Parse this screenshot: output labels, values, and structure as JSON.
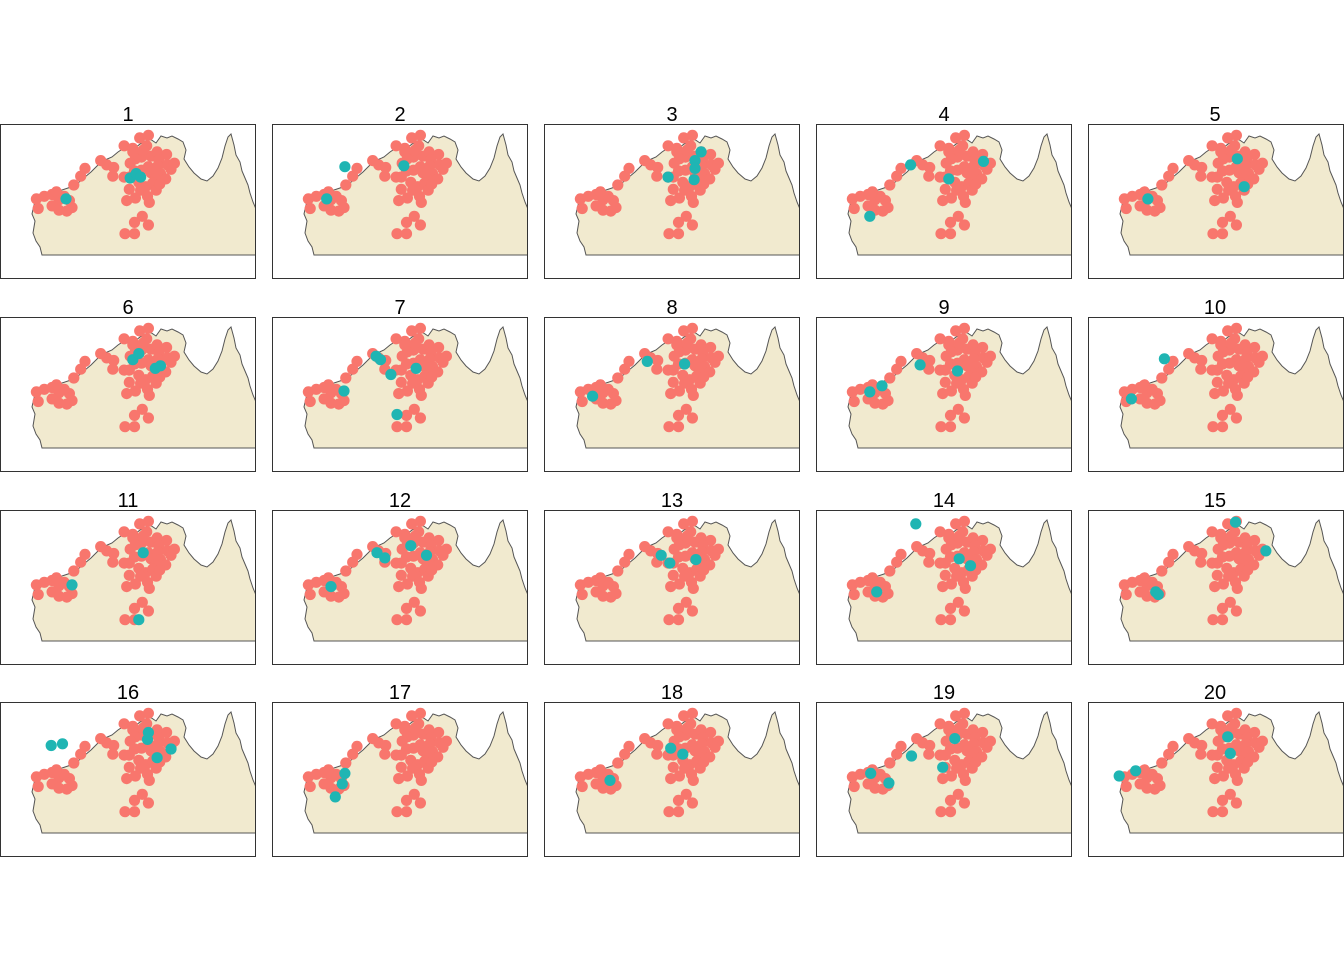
{
  "figure": {
    "type": "small-multiples-map",
    "panels": [
      {
        "title": "1",
        "highlight": [
          [
            -18.6,
            125.6
          ],
          [
            -16.2,
            133.0
          ],
          [
            -15.7,
            133.7
          ],
          [
            -16.1,
            134.2
          ]
        ]
      },
      {
        "title": "2",
        "highlight": [
          [
            -14.9,
            126.4
          ],
          [
            -14.8,
            133.2
          ],
          [
            -18.6,
            124.3
          ]
        ]
      },
      {
        "title": "3",
        "highlight": [
          [
            -16.1,
            132.3
          ],
          [
            -14.2,
            135.4
          ],
          [
            -15.1,
            135.4
          ],
          [
            -16.4,
            135.3
          ],
          [
            -13.2,
            136.1
          ]
        ]
      },
      {
        "title": "4",
        "highlight": [
          [
            -14.7,
            128.9
          ],
          [
            -16.3,
            133.3
          ],
          [
            -14.3,
            137.3
          ],
          [
            -20.6,
            124.2
          ]
        ]
      },
      {
        "title": "5",
        "highlight": [
          [
            -14.0,
            135.2
          ],
          [
            -18.6,
            124.9
          ],
          [
            -17.2,
            136.0
          ]
        ]
      },
      {
        "title": "6",
        "highlight": [
          [
            -14.9,
            133.3
          ],
          [
            -14.2,
            134.0
          ],
          [
            -15.9,
            135.9
          ],
          [
            -15.6,
            136.5
          ]
        ]
      },
      {
        "title": "7",
        "highlight": [
          [
            -14.5,
            130.0
          ],
          [
            -14.9,
            130.5
          ],
          [
            -16.6,
            131.7
          ],
          [
            -21.2,
            132.4
          ],
          [
            -15.9,
            134.6
          ],
          [
            -18.5,
            126.3
          ]
        ]
      },
      {
        "title": "8",
        "highlight": [
          [
            -15.1,
            129.9
          ],
          [
            -15.4,
            134.2
          ],
          [
            -19.1,
            123.6
          ]
        ]
      },
      {
        "title": "9",
        "highlight": [
          [
            -15.5,
            130.0
          ],
          [
            -16.2,
            134.3
          ],
          [
            -18.6,
            124.2
          ],
          [
            -17.9,
            125.6
          ]
        ]
      },
      {
        "title": "10",
        "highlight": [
          [
            -14.8,
            126.8
          ],
          [
            -19.4,
            123.0
          ]
        ]
      },
      {
        "title": "11",
        "highlight": [
          [
            -22.6,
            134.0
          ],
          [
            -14.9,
            134.5
          ],
          [
            -18.6,
            126.3
          ]
        ]
      },
      {
        "title": "12",
        "highlight": [
          [
            -14.9,
            130.1
          ],
          [
            -15.5,
            131.0
          ],
          [
            -14.1,
            134.0
          ],
          [
            -15.2,
            135.8
          ],
          [
            -18.8,
            124.8
          ]
        ]
      },
      {
        "title": "13",
        "highlight": [
          [
            -16.1,
            132.5
          ],
          [
            -15.2,
            131.5
          ],
          [
            -15.7,
            135.5
          ]
        ]
      },
      {
        "title": "14",
        "highlight": [
          [
            -11.6,
            129.5
          ],
          [
            -19.4,
            125.0
          ],
          [
            -15.6,
            134.5
          ],
          [
            -16.4,
            135.8
          ]
        ]
      },
      {
        "title": "15",
        "highlight": [
          [
            -11.4,
            135.0
          ],
          [
            -19.4,
            125.8
          ],
          [
            -19.7,
            126.1
          ],
          [
            -14.7,
            138.5
          ]
        ]
      },
      {
        "title": "16",
        "highlight": [
          [
            -15.0,
            123.9
          ],
          [
            -14.8,
            125.2
          ],
          [
            -13.5,
            135.1
          ],
          [
            -16.4,
            136.1
          ],
          [
            -14.3,
            135.0
          ],
          [
            -15.4,
            137.7
          ]
        ]
      },
      {
        "title": "17",
        "highlight": [
          [
            -19.4,
            126.1
          ],
          [
            -18.2,
            126.4
          ],
          [
            -20.9,
            125.3
          ]
        ]
      },
      {
        "title": "18",
        "highlight": [
          [
            -16.0,
            134.0
          ],
          [
            -15.3,
            132.6
          ],
          [
            -19.0,
            125.6
          ]
        ]
      },
      {
        "title": "19",
        "highlight": [
          [
            -14.2,
            134.0
          ],
          [
            -16.2,
            129.0
          ],
          [
            -19.3,
            126.4
          ],
          [
            -18.2,
            124.3
          ],
          [
            -17.5,
            132.6
          ]
        ]
      },
      {
        "title": "20",
        "highlight": [
          [
            -18.5,
            121.6
          ],
          [
            -17.9,
            123.5
          ],
          [
            -15.9,
            134.4
          ],
          [
            -14.0,
            134.1
          ]
        ]
      }
    ],
    "points": [
      [
        -19.7,
        122.4
      ],
      [
        -18.6,
        122.2
      ],
      [
        -18.3,
        123.1
      ],
      [
        -18.1,
        124.0
      ],
      [
        -18.7,
        124.8
      ],
      [
        -19.4,
        124.0
      ],
      [
        -19.9,
        124.8
      ],
      [
        -20.0,
        125.7
      ],
      [
        -18.8,
        126.0
      ],
      [
        -19.6,
        126.3
      ],
      [
        -18.3,
        125.4
      ],
      [
        -17.0,
        126.5
      ],
      [
        -16.0,
        127.3
      ],
      [
        -15.1,
        127.8
      ],
      [
        -14.7,
        130.3
      ],
      [
        -15.0,
        131.1
      ],
      [
        -14.2,
        129.6
      ],
      [
        -16.1,
        132.3
      ],
      [
        -16.0,
        131.0
      ],
      [
        -12.5,
        132.3
      ],
      [
        -12.8,
        133.3
      ],
      [
        -11.6,
        134.1
      ],
      [
        -11.3,
        135.1
      ],
      [
        -12.5,
        134.9
      ],
      [
        -13.2,
        133.3
      ],
      [
        -13.8,
        134.3
      ],
      [
        -13.7,
        135.4
      ],
      [
        -13.2,
        136.1
      ],
      [
        -13.5,
        137.2
      ],
      [
        -14.1,
        136.3
      ],
      [
        -14.9,
        135.1
      ],
      [
        -14.8,
        136.2
      ],
      [
        -14.7,
        137.3
      ],
      [
        -14.5,
        138.1
      ],
      [
        -15.3,
        134.3
      ],
      [
        -15.6,
        135.4
      ],
      [
        -15.7,
        136.5
      ],
      [
        -15.2,
        137.7
      ],
      [
        -16.3,
        135.9
      ],
      [
        -16.3,
        137.1
      ],
      [
        -16.7,
        134.0
      ],
      [
        -17.2,
        134.8
      ],
      [
        -17.6,
        134.2
      ],
      [
        -18.3,
        135.0
      ],
      [
        -16.8,
        135.6
      ],
      [
        -16.1,
        132.9
      ],
      [
        -17.5,
        132.9
      ],
      [
        -18.5,
        133.6
      ],
      [
        -19.0,
        135.2
      ],
      [
        -17.6,
        136.0
      ],
      [
        -18.8,
        132.6
      ],
      [
        -20.6,
        134.4
      ],
      [
        -21.3,
        133.5
      ],
      [
        -22.6,
        132.4
      ],
      [
        -22.6,
        133.5
      ],
      [
        -21.6,
        135.1
      ],
      [
        -14.0,
        133.6
      ],
      [
        -14.5,
        133.0
      ],
      [
        -15.4,
        133.5
      ],
      [
        -16.9,
        136.4
      ],
      [
        -13.0,
        134.5
      ],
      [
        -17.8,
        124.5
      ]
    ],
    "colors": {
      "point": "#F8766D",
      "highlight": "#1FB5B3",
      "land": "#F1EACF",
      "coast": "#555555",
      "frame": "#333333"
    }
  }
}
